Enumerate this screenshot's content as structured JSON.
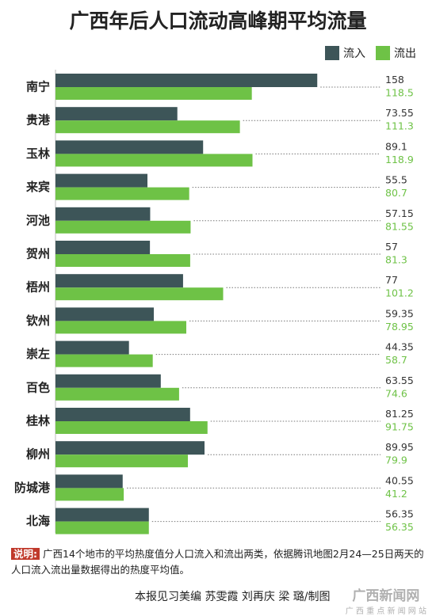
{
  "chart_data": {
    "type": "hbar",
    "title": "广西年后人口流动高峰期平均流量",
    "categories": [
      "南宁",
      "贵港",
      "玉林",
      "来宾",
      "河池",
      "贺州",
      "梧州",
      "钦州",
      "崇左",
      "百色",
      "桂林",
      "柳州",
      "防城港",
      "北海"
    ],
    "series": [
      {
        "name": "流入",
        "color": "#3d5558",
        "values": [
          158,
          73.55,
          89.1,
          55.5,
          57.15,
          57,
          77,
          59.35,
          44.35,
          63.55,
          81.25,
          89.95,
          40.55,
          56.35
        ]
      },
      {
        "name": "流出",
        "color": "#6ec246",
        "values": [
          118.5,
          111.3,
          118.9,
          80.7,
          81.55,
          81.3,
          101.2,
          78.95,
          58.7,
          74.6,
          91.75,
          79.9,
          41.2,
          56.35
        ]
      }
    ],
    "legend": "top-right"
  },
  "note": {
    "label": "说明:",
    "text": "广西14个地市的平均热度值分人口流入和流出两类，依据腾讯地图2月24—25日两天的人口流入流出量数据得出的热度平均值。"
  },
  "credit": "本报见习美编 苏雯霞 刘再庆 梁 璐/制图",
  "watermark": [
    "广西新闻网",
    "广 西 重 点 新 闻 网 站"
  ]
}
